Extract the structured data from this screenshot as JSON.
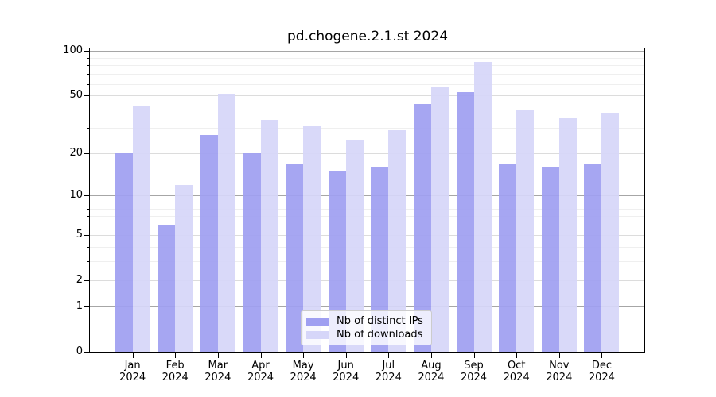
{
  "chart_data": {
    "type": "bar",
    "title": "pd.chogene.2.1.st 2024",
    "categories": [
      "Jan 2024",
      "Feb 2024",
      "Mar 2024",
      "Apr 2024",
      "May 2024",
      "Jun 2024",
      "Jul 2024",
      "Aug 2024",
      "Sep 2024",
      "Oct 2024",
      "Nov 2024",
      "Dec 2024"
    ],
    "series": [
      {
        "name": "Nb of distinct IPs",
        "color": "#9f9ff1",
        "values": [
          20,
          6,
          27,
          20,
          17,
          15,
          16,
          44,
          53,
          17,
          16,
          17
        ]
      },
      {
        "name": "Nb of downloads",
        "color": "#d6d6f9",
        "values": [
          42,
          12,
          51,
          34,
          31,
          25,
          29,
          57,
          84,
          40,
          35,
          38
        ]
      }
    ],
    "xlabel": "",
    "ylabel": "",
    "scale": "log1p",
    "ylim": [
      0,
      104
    ],
    "yticks_major": [
      0,
      1,
      2,
      5,
      10,
      20,
      50,
      100
    ],
    "yticks_minor": [
      3,
      4,
      6,
      7,
      8,
      9,
      30,
      40,
      60,
      70,
      80,
      90
    ],
    "yticks_emphasis": [
      1,
      10,
      100
    ],
    "grid": true,
    "legend_position": "lower center"
  },
  "legend": {
    "items": [
      "Nb of distinct IPs",
      "Nb of downloads"
    ]
  },
  "colors": {
    "background": "#ffffff",
    "bar_distinct_ips": "#9f9ff1",
    "bar_downloads": "#d6d6f9",
    "grid_decade": "#a6a6a6",
    "grid_major": "#dcdcdc",
    "grid_minor": "#efefef",
    "spine": "#000000",
    "text": "#000000",
    "legend_border": "#cccccc"
  }
}
